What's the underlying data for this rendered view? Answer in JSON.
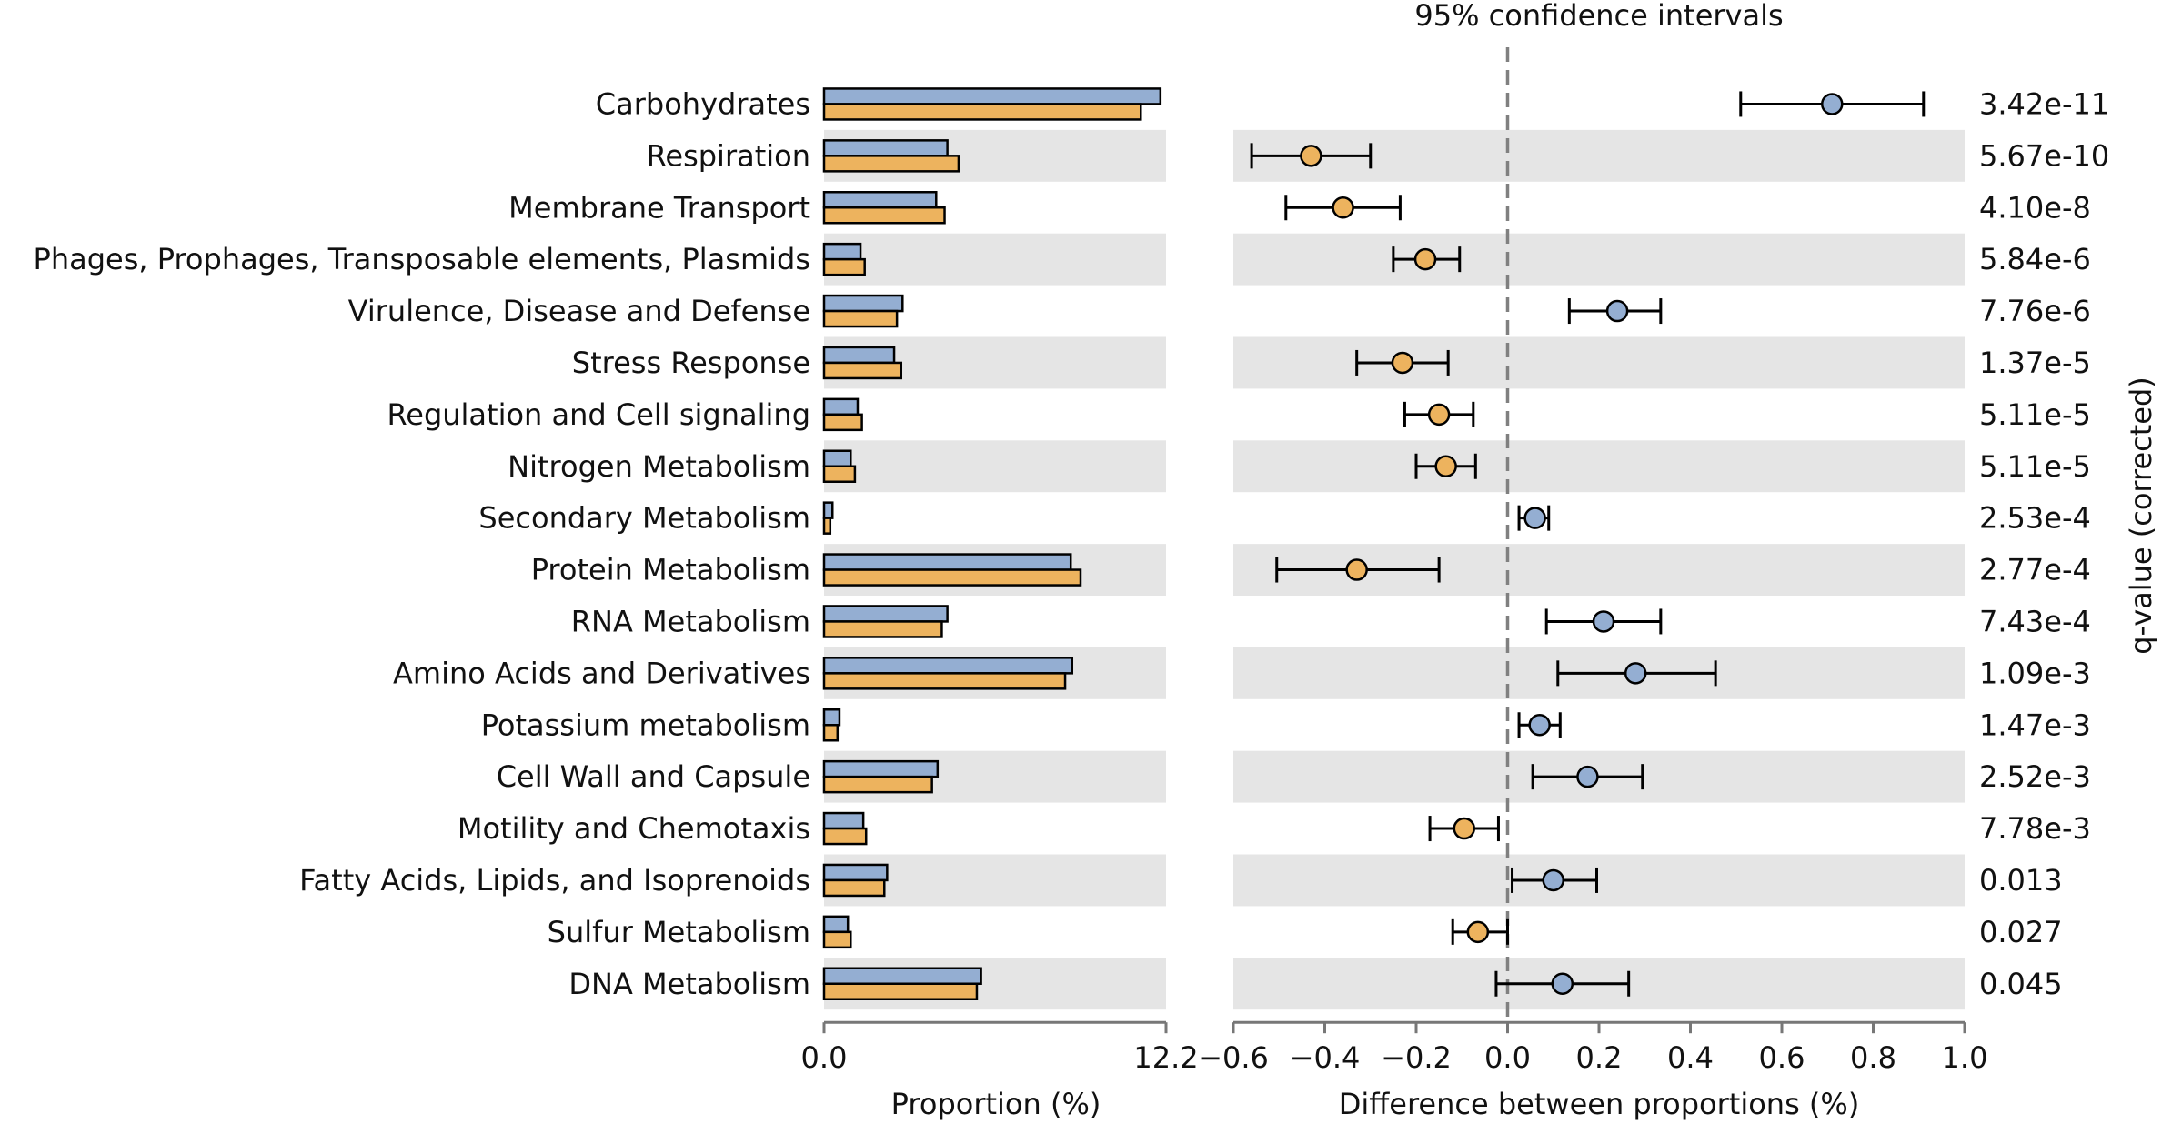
{
  "chart_data": {
    "type": "extended-error-bar",
    "title": "95% confidence intervals",
    "left_panel": {
      "xlabel": "Proportion (%)",
      "xlim": [
        0,
        12.2
      ],
      "tick_labels": [
        "0.0",
        "12.2"
      ]
    },
    "right_panel": {
      "xlabel": "Difference between proportions (%)",
      "xlim": [
        -0.6,
        1.0
      ],
      "ticks": [
        -0.6,
        -0.4,
        -0.2,
        0.0,
        0.2,
        0.4,
        0.6,
        0.8,
        1.0
      ],
      "tick_labels": [
        "−0.6",
        "−0.4",
        "−0.2",
        "0.0",
        "0.2",
        "0.4",
        "0.6",
        "0.8",
        "1.0"
      ]
    },
    "qvalue_label": "q-value (corrected)",
    "colors": {
      "group1": "#94aed2",
      "group2": "#edb35e",
      "stripe": "#e5e5e5",
      "zero_line": "#808080"
    },
    "series": [
      {
        "name": "group1",
        "color": "#94aed2"
      },
      {
        "name": "group2",
        "color": "#edb35e"
      }
    ],
    "categories": [
      "Carbohydrates",
      "Respiration",
      "Membrane Transport",
      "Phages, Prophages, Transposable elements, Plasmids",
      "Virulence, Disease and Defense",
      "Stress Response",
      "Regulation and Cell signaling",
      "Nitrogen Metabolism",
      "Secondary Metabolism",
      "Protein Metabolism",
      "RNA Metabolism",
      "Amino Acids and Derivatives",
      "Potassium metabolism",
      "Cell Wall and Capsule",
      "Motility and Chemotaxis",
      "Fatty Acids, Lipids, and Isoprenoids",
      "Sulfur Metabolism",
      "DNA Metabolism"
    ],
    "group1_values": [
      12.0,
      4.4,
      4.0,
      1.3,
      2.8,
      2.5,
      1.2,
      0.95,
      0.3,
      8.8,
      4.4,
      8.85,
      0.55,
      4.05,
      1.4,
      2.25,
      0.85,
      5.6
    ],
    "group2_values": [
      11.3,
      4.8,
      4.3,
      1.45,
      2.6,
      2.75,
      1.35,
      1.1,
      0.22,
      9.15,
      4.2,
      8.6,
      0.48,
      3.85,
      1.5,
      2.15,
      0.95,
      5.45
    ],
    "differences": [
      0.71,
      -0.43,
      -0.36,
      -0.18,
      0.24,
      -0.23,
      -0.15,
      -0.135,
      0.06,
      -0.33,
      0.21,
      0.28,
      0.07,
      0.175,
      -0.095,
      0.1,
      -0.065,
      0.12
    ],
    "ci_low": [
      0.51,
      -0.56,
      -0.485,
      -0.25,
      0.135,
      -0.33,
      -0.225,
      -0.2,
      0.025,
      -0.505,
      0.085,
      0.11,
      0.025,
      0.055,
      -0.17,
      0.01,
      -0.12,
      -0.025
    ],
    "ci_high": [
      0.91,
      -0.3,
      -0.235,
      -0.105,
      0.335,
      -0.13,
      -0.075,
      -0.07,
      0.09,
      -0.15,
      0.335,
      0.455,
      0.115,
      0.295,
      -0.02,
      0.195,
      0.0,
      0.265
    ],
    "q_values": [
      "3.42e-11",
      "5.67e-10",
      "4.10e-8",
      "5.84e-6",
      "7.76e-6",
      "1.37e-5",
      "5.11e-5",
      "5.11e-5",
      "2.53e-4",
      "2.77e-4",
      "7.43e-4",
      "1.09e-3",
      "1.47e-3",
      "2.52e-3",
      "7.78e-3",
      "0.013",
      "0.027",
      "0.045"
    ]
  }
}
